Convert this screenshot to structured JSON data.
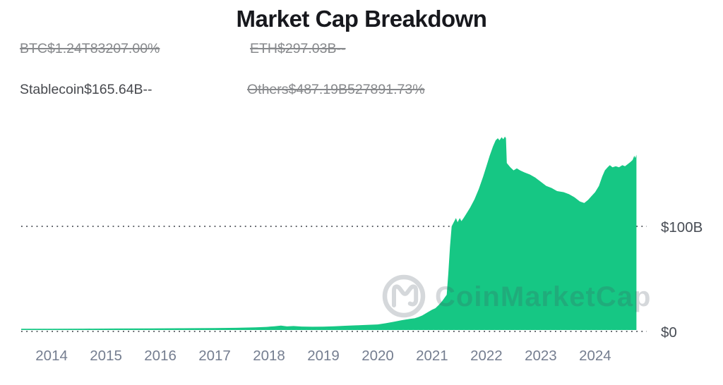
{
  "title": "Market Cap Breakdown",
  "legend": {
    "items": [
      {
        "id": "btc",
        "label": "BTC$1.24T83207.00%",
        "active": false
      },
      {
        "id": "eth",
        "label": "ETH$297.03B--",
        "active": false
      },
      {
        "id": "stablecoin",
        "label": "Stablecoin$165.64B--",
        "active": true
      },
      {
        "id": "others",
        "label": "Others$487.19B527891.73%",
        "active": false
      }
    ]
  },
  "watermark": {
    "text": "CoinMarketCap",
    "logo": "coinmarketcap-logo"
  },
  "colors": {
    "accent_green": "#16c784",
    "title_color": "#17181d",
    "legend_active": "#47494e",
    "legend_inactive": "#87898c",
    "axis_year": "#757e90",
    "axis_value": "#474c54",
    "grid_dot": "#42464d",
    "watermark": "#46525f"
  },
  "chart_data": {
    "type": "area",
    "title": "Market Cap Breakdown",
    "series": [
      {
        "name": "Stablecoin",
        "unit": "$B"
      }
    ],
    "grid": "dotted-horizontal",
    "legend_position": "top-left",
    "xlim": [
      2013.44,
      2024.95
    ],
    "ylim": [
      0,
      202.7
    ],
    "x_ticks": [
      2014,
      2015,
      2016,
      2017,
      2018,
      2019,
      2020,
      2021,
      2022,
      2023,
      2024
    ],
    "y_ticks": [
      {
        "value": 0,
        "label": "$0"
      },
      {
        "value": 100,
        "label": "$100B"
      }
    ],
    "points": [
      [
        2013.44,
        1.2
      ],
      [
        2014.0,
        1.2
      ],
      [
        2014.6,
        1.3
      ],
      [
        2015.2,
        1.4
      ],
      [
        2015.8,
        1.5
      ],
      [
        2016.4,
        1.7
      ],
      [
        2017.0,
        1.9
      ],
      [
        2017.4,
        2.1
      ],
      [
        2017.75,
        2.5
      ],
      [
        2017.95,
        3.0
      ],
      [
        2018.1,
        3.6
      ],
      [
        2018.22,
        4.2
      ],
      [
        2018.33,
        3.5
      ],
      [
        2018.45,
        3.8
      ],
      [
        2018.6,
        3.3
      ],
      [
        2018.8,
        3.1
      ],
      [
        2019.0,
        3.2
      ],
      [
        2019.2,
        3.6
      ],
      [
        2019.4,
        4.1
      ],
      [
        2019.6,
        4.5
      ],
      [
        2019.8,
        4.9
      ],
      [
        2020.0,
        5.4
      ],
      [
        2020.15,
        6.5
      ],
      [
        2020.3,
        8.0
      ],
      [
        2020.45,
        9.5
      ],
      [
        2020.6,
        10.8
      ],
      [
        2020.68,
        11.3
      ],
      [
        2020.75,
        12.5
      ],
      [
        2020.82,
        14.0
      ],
      [
        2020.9,
        16.5
      ],
      [
        2021.0,
        19.5
      ],
      [
        2021.06,
        21.0
      ],
      [
        2021.12,
        24.0
      ],
      [
        2021.18,
        27.5
      ],
      [
        2021.23,
        31.0
      ],
      [
        2021.27,
        34.0
      ],
      [
        2021.3,
        55.0
      ],
      [
        2021.33,
        80.0
      ],
      [
        2021.36,
        100.0
      ],
      [
        2021.4,
        104.0
      ],
      [
        2021.44,
        108.0
      ],
      [
        2021.47,
        104.0
      ],
      [
        2021.51,
        108.0
      ],
      [
        2021.54,
        105.0
      ],
      [
        2021.58,
        108.0
      ],
      [
        2021.63,
        112.0
      ],
      [
        2021.7,
        118.0
      ],
      [
        2021.78,
        126.0
      ],
      [
        2021.86,
        136.0
      ],
      [
        2021.94,
        148.0
      ],
      [
        2022.0,
        158.0
      ],
      [
        2022.06,
        168.0
      ],
      [
        2022.12,
        177.0
      ],
      [
        2022.17,
        183.0
      ],
      [
        2022.21,
        185.0
      ],
      [
        2022.24,
        183.0
      ],
      [
        2022.28,
        186.0
      ],
      [
        2022.31,
        184.0
      ],
      [
        2022.34,
        186.5
      ],
      [
        2022.36,
        185.0
      ],
      [
        2022.375,
        161.0
      ],
      [
        2022.44,
        157.0
      ],
      [
        2022.5,
        154.0
      ],
      [
        2022.56,
        156.0
      ],
      [
        2022.62,
        154.0
      ],
      [
        2022.7,
        152.0
      ],
      [
        2022.8,
        150.0
      ],
      [
        2022.9,
        147.0
      ],
      [
        2023.0,
        143.0
      ],
      [
        2023.1,
        139.0
      ],
      [
        2023.2,
        137.0
      ],
      [
        2023.3,
        134.0
      ],
      [
        2023.42,
        133.0
      ],
      [
        2023.52,
        131.0
      ],
      [
        2023.62,
        128.0
      ],
      [
        2023.72,
        124.0
      ],
      [
        2023.8,
        122.5
      ],
      [
        2023.87,
        125.5
      ],
      [
        2023.93,
        129.0
      ],
      [
        2024.0,
        133.0
      ],
      [
        2024.07,
        139.0
      ],
      [
        2024.13,
        148.0
      ],
      [
        2024.18,
        154.0
      ],
      [
        2024.23,
        157.0
      ],
      [
        2024.27,
        159.0
      ],
      [
        2024.32,
        157.0
      ],
      [
        2024.38,
        158.0
      ],
      [
        2024.44,
        157.0
      ],
      [
        2024.5,
        159.0
      ],
      [
        2024.55,
        158.0
      ],
      [
        2024.6,
        160.0
      ],
      [
        2024.65,
        162.0
      ],
      [
        2024.69,
        164.0
      ],
      [
        2024.72,
        168.0
      ],
      [
        2024.74,
        166.0
      ],
      [
        2024.76,
        169.0
      ]
    ]
  }
}
